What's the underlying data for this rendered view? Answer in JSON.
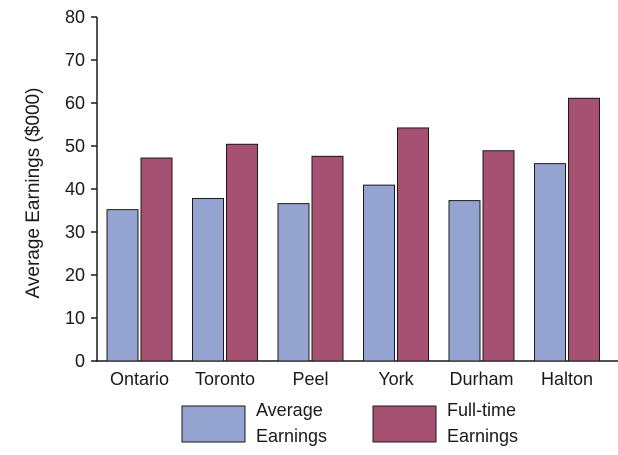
{
  "chart_data": {
    "type": "bar",
    "title": "",
    "xlabel": "",
    "ylabel": "Average Earnings ($000)",
    "ylim": [
      0,
      80
    ],
    "yticks": [
      0,
      10,
      20,
      30,
      40,
      50,
      60,
      70,
      80
    ],
    "categories": [
      "Ontario",
      "Toronto",
      "Peel",
      "York",
      "Durham",
      "Halton"
    ],
    "series": [
      {
        "name": "Average Earnings",
        "color": "#94a3cf",
        "values": [
          35.2,
          37.8,
          36.6,
          40.9,
          37.3,
          45.9
        ]
      },
      {
        "name": "Full-time Earnings",
        "color": "#a65072",
        "values": [
          47.2,
          50.4,
          47.6,
          54.2,
          48.9,
          61.1
        ]
      }
    ],
    "legend": {
      "placement": "bottom",
      "entries": [
        {
          "line1": "Average",
          "line2": "Earnings",
          "color": "#94a3cf"
        },
        {
          "line1": "Full-time",
          "line2": "Earnings",
          "color": "#a65072"
        }
      ]
    },
    "grid": false
  }
}
